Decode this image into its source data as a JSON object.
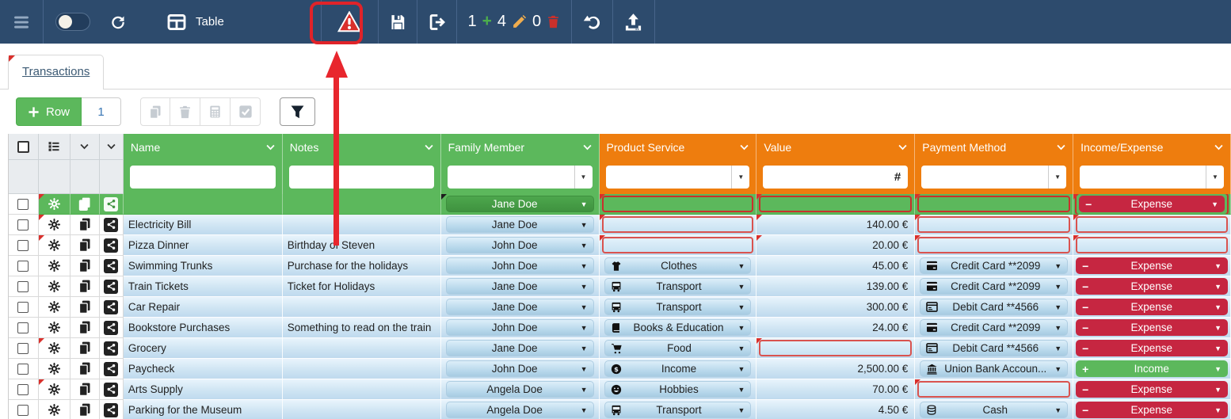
{
  "navbar": {
    "table_label": "Table",
    "counters": {
      "added": "1",
      "edited": "4",
      "deleted": "0"
    },
    "icons": [
      "menu-icon",
      "toggle-switch",
      "refresh-icon",
      "table-icon",
      "warning-icon",
      "save-icon",
      "export-icon",
      "plus-icon",
      "pencil-icon",
      "trash-icon",
      "undo-icon",
      "upload-icon"
    ]
  },
  "annotation": {
    "shape": "red box around warning button with red arrow pointing up at it",
    "color": "#e0242b"
  },
  "tab_label": "Transactions",
  "toolbar": {
    "add_row_label": "Row",
    "row_count_value": "1",
    "disabled_icons": [
      "copy-icon",
      "trash-icon",
      "calculator-icon",
      "check-square-icon"
    ],
    "filter_icon": "funnel-icon"
  },
  "grid": {
    "value_filter_symbol": "#",
    "columns": [
      {
        "label": "Name",
        "group": "green",
        "filter": "text"
      },
      {
        "label": "Notes",
        "group": "green",
        "filter": "text"
      },
      {
        "label": "Family Member",
        "group": "green",
        "filter": "select"
      },
      {
        "label": "Product Service",
        "group": "orange",
        "filter": "select"
      },
      {
        "label": "Value",
        "group": "orange",
        "filter": "number"
      },
      {
        "label": "Payment Method",
        "group": "orange",
        "filter": "select"
      },
      {
        "label": "Income/Expense",
        "group": "orange",
        "filter": "select"
      }
    ],
    "new_row": {
      "name": "",
      "notes": "",
      "family": "Jane Doe",
      "product": null,
      "value": null,
      "payment": null,
      "type": {
        "label": "Expense",
        "variant": "expense"
      }
    },
    "rows": [
      {
        "name": "Electricity Bill",
        "notes": "",
        "family": "Jane Doe",
        "product": null,
        "value": "140.00 €",
        "payment": null,
        "type": null,
        "edited": true,
        "value_corner": true
      },
      {
        "name": "Pizza Dinner",
        "notes": "Birthday of Steven",
        "family": "John Doe",
        "product": null,
        "value": "20.00 €",
        "payment": null,
        "type": null,
        "edited": true,
        "value_corner": true
      },
      {
        "name": "Swimming Trunks",
        "notes": "Purchase for the holidays",
        "family": "John Doe",
        "product": {
          "icon": "tshirt-icon",
          "label": "Clothes"
        },
        "value": "45.00 €",
        "payment": {
          "icon": "credit-card-icon",
          "label": "Credit Card **2099"
        },
        "type": {
          "label": "Expense",
          "variant": "expense"
        },
        "edited": false
      },
      {
        "name": "Train Tickets",
        "notes": "Ticket for Holidays",
        "family": "Jane Doe",
        "product": {
          "icon": "bus-icon",
          "label": "Transport"
        },
        "value": "139.00 €",
        "payment": {
          "icon": "credit-card-icon",
          "label": "Credit Card **2099"
        },
        "type": {
          "label": "Expense",
          "variant": "expense"
        },
        "edited": false
      },
      {
        "name": "Car Repair",
        "notes": "",
        "family": "Jane Doe",
        "product": {
          "icon": "bus-icon",
          "label": "Transport"
        },
        "value": "300.00 €",
        "payment": {
          "icon": "debit-card-icon",
          "label": "Debit Card **4566"
        },
        "type": {
          "label": "Expense",
          "variant": "expense"
        },
        "edited": false
      },
      {
        "name": "Bookstore Purchases",
        "notes": "Something to read on the train",
        "family": "John Doe",
        "product": {
          "icon": "book-icon",
          "label": "Books & Education"
        },
        "value": "24.00 €",
        "payment": {
          "icon": "credit-card-icon",
          "label": "Credit Card **2099"
        },
        "type": {
          "label": "Expense",
          "variant": "expense"
        },
        "edited": false
      },
      {
        "name": "Grocery",
        "notes": "",
        "family": "Jane Doe",
        "product": {
          "icon": "cart-icon",
          "label": "Food"
        },
        "value": null,
        "payment": {
          "icon": "debit-card-icon",
          "label": "Debit Card **4566"
        },
        "type": {
          "label": "Expense",
          "variant": "expense"
        },
        "edited": true
      },
      {
        "name": "Paycheck",
        "notes": "",
        "family": "John Doe",
        "product": {
          "icon": "dollar-coin-icon",
          "label": "Income"
        },
        "value": "2,500.00 €",
        "payment": {
          "icon": "bank-icon",
          "label": "Union Bank Accoun..."
        },
        "type": {
          "label": "Income",
          "variant": "income"
        },
        "edited": false
      },
      {
        "name": "Arts Supply",
        "notes": "",
        "family": "Angela Doe",
        "product": {
          "icon": "smiley-icon",
          "label": "Hobbies"
        },
        "value": "70.00 €",
        "payment": null,
        "type": {
          "label": "Expense",
          "variant": "expense"
        },
        "edited": true
      },
      {
        "name": "Parking for the Museum",
        "notes": "",
        "family": "Angela Doe",
        "product": {
          "icon": "bus-icon",
          "label": "Transport"
        },
        "value": "4.50 €",
        "payment": {
          "icon": "coins-icon",
          "label": "Cash"
        },
        "type": {
          "label": "Expense",
          "variant": "expense"
        },
        "edited": false
      }
    ]
  },
  "colors": {
    "navbar": "#2d4b6d",
    "header_green": "#5cb85c",
    "header_orange": "#ee7d0e",
    "expense_badge": "#c62641",
    "income_badge": "#5cb85c",
    "error_border": "#d9534f",
    "annotation_red": "#e0242b",
    "row_blue": "#cfe5f3"
  }
}
